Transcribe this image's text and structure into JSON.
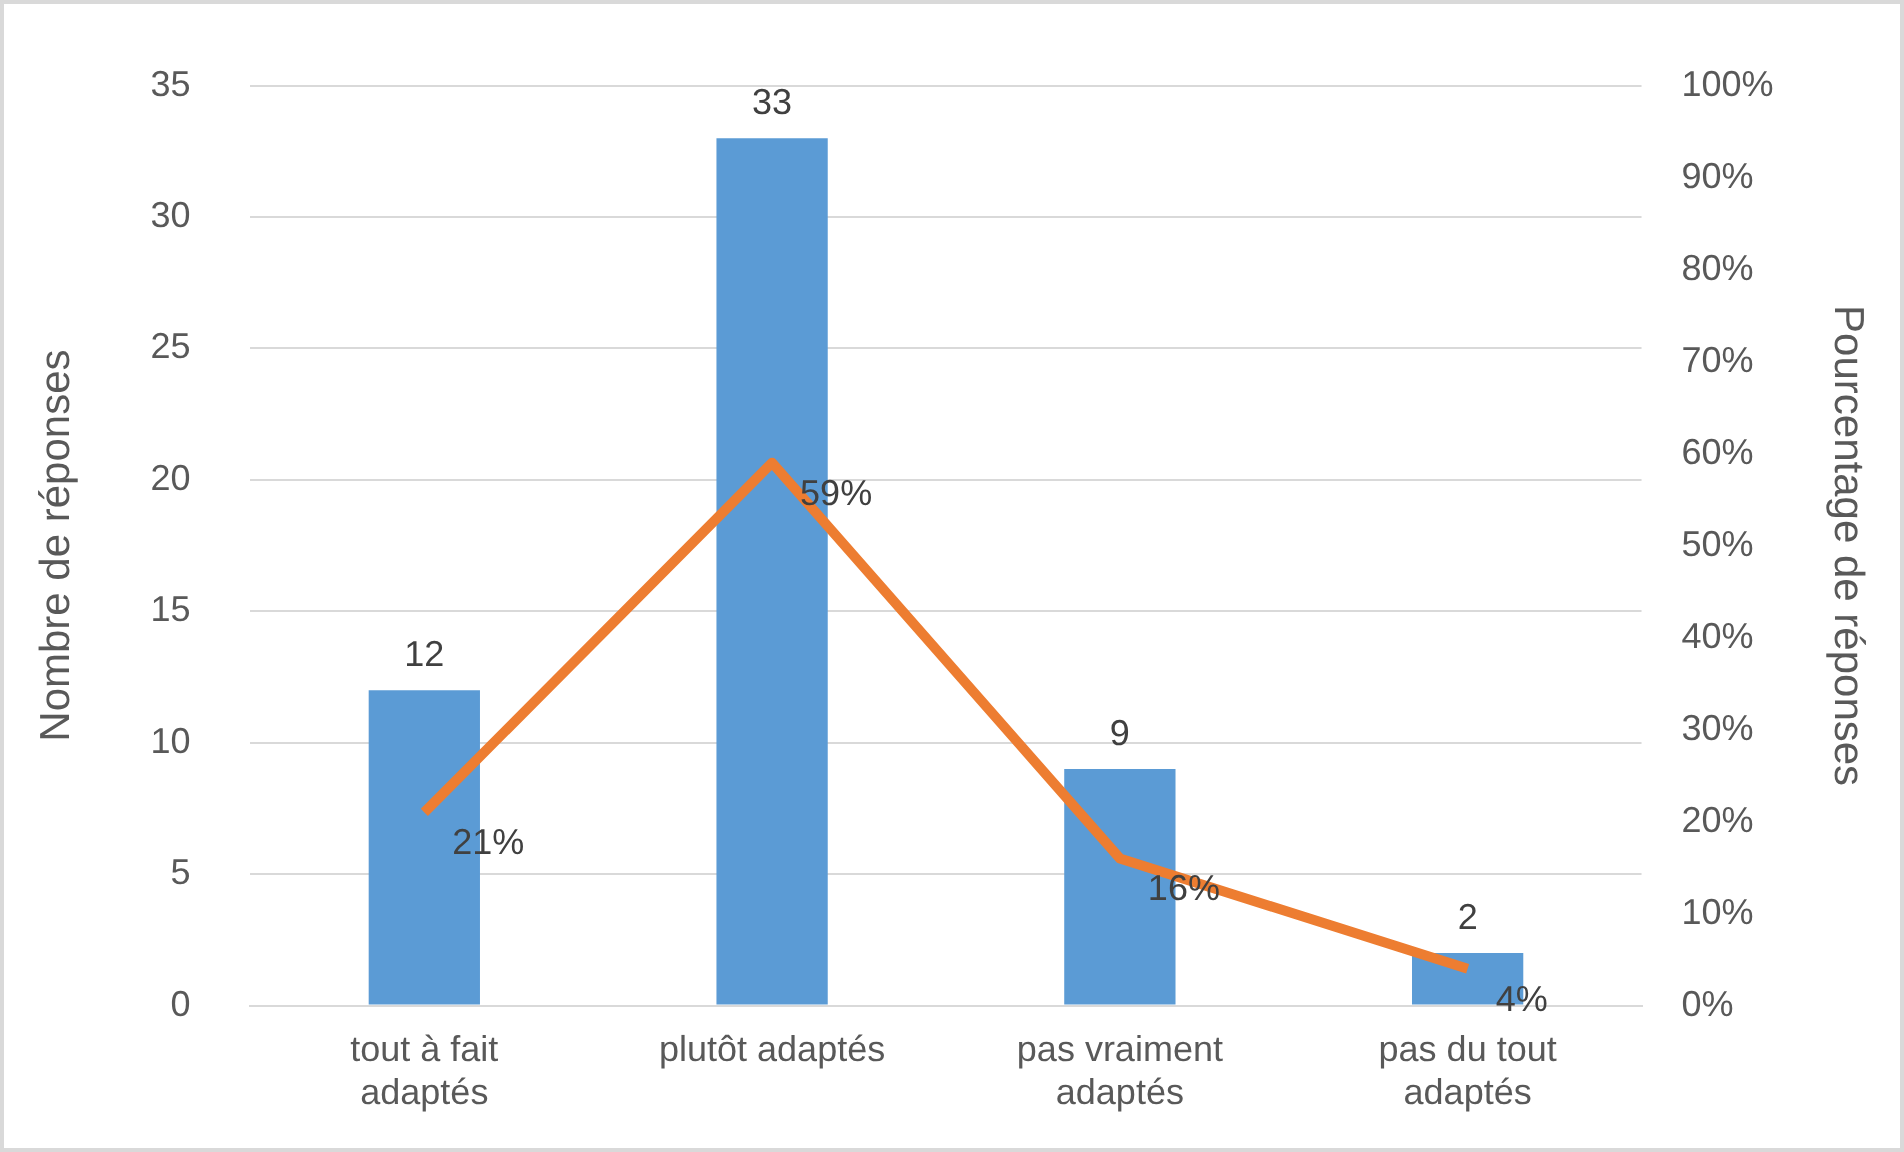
{
  "chart_data": {
    "type": "bar",
    "ylabel": "Nombre de réponses",
    "y2label": "Pourcentage de réponses",
    "categories": [
      "tout à fait adaptés",
      "plutôt adaptés",
      "pas vraiment adaptés",
      "pas du tout adaptés"
    ],
    "series": [
      {
        "color": "#5b9bd5",
        "values": [
          12,
          33,
          9,
          2
        ],
        "value_labels": [
          "12",
          "33",
          "9",
          "2"
        ]
      },
      {
        "type": "line",
        "axis": "y2",
        "color": "#ed7d31",
        "values": [
          21,
          59,
          16,
          4
        ],
        "value_labels": [
          "21%",
          "59%",
          "16%",
          "4%"
        ]
      }
    ],
    "ylim": [
      0,
      35
    ],
    "yticks": [
      0,
      5,
      10,
      15,
      20,
      25,
      30,
      35
    ],
    "y2lim": [
      0,
      100
    ],
    "y2ticks": [
      {
        "value": 0,
        "label": "0%"
      },
      {
        "value": 10,
        "label": "10%"
      },
      {
        "value": 20,
        "label": "20%"
      },
      {
        "value": 30,
        "label": "30%"
      },
      {
        "value": 40,
        "label": "40%"
      },
      {
        "value": 50,
        "label": "50%"
      },
      {
        "value": 60,
        "label": "60%"
      },
      {
        "value": 70,
        "label": "70%"
      },
      {
        "value": 80,
        "label": "80%"
      },
      {
        "value": 90,
        "label": "90%"
      },
      {
        "value": 100,
        "label": "100%"
      }
    ],
    "grid": "y",
    "legend": false,
    "marker": "none"
  }
}
